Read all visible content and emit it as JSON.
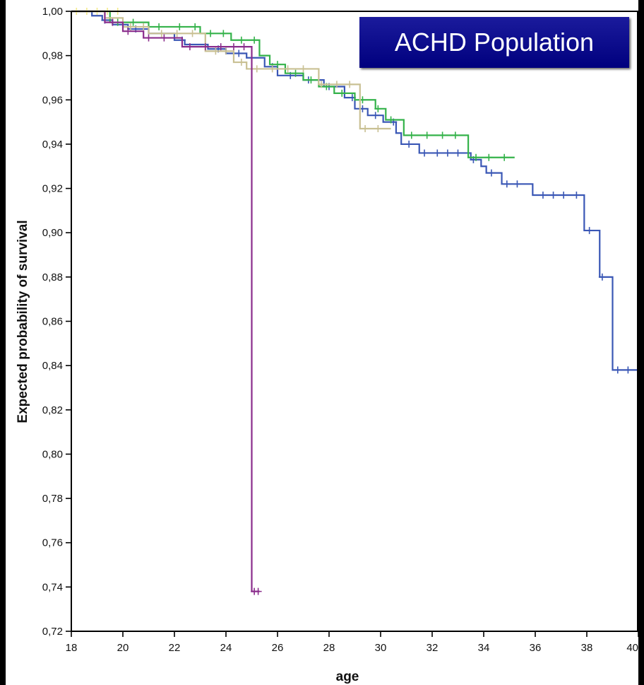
{
  "chart_data": {
    "type": "line",
    "title": "ACHD Population",
    "xlabel": "age",
    "ylabel": "Expected probability of survival",
    "xlim": [
      18,
      40
    ],
    "ylim": [
      0.72,
      1.0
    ],
    "x_ticks": [
      "18",
      "20",
      "22",
      "24",
      "26",
      "28",
      "30",
      "32",
      "34",
      "36",
      "38",
      "40"
    ],
    "y_ticks": [
      "0,72",
      "0,74",
      "0,76",
      "0,78",
      "0,80",
      "0,82",
      "0,84",
      "0,86",
      "0,88",
      "0,90",
      "0,92",
      "0,94",
      "0,96",
      "0,98",
      "1,00"
    ],
    "x_tick_values": [
      18,
      20,
      22,
      24,
      26,
      28,
      30,
      32,
      34,
      36,
      38,
      40
    ],
    "y_tick_values": [
      0.72,
      0.74,
      0.76,
      0.78,
      0.8,
      0.82,
      0.84,
      0.86,
      0.88,
      0.9,
      0.92,
      0.94,
      0.96,
      0.98,
      1.0
    ],
    "grid": false,
    "series": [
      {
        "color": "#3a57b5",
        "steps": [
          [
            18,
            1.0
          ],
          [
            18.8,
            0.998
          ],
          [
            19.2,
            0.996
          ],
          [
            19.6,
            0.994
          ],
          [
            20.2,
            0.992
          ],
          [
            21,
            0.99
          ],
          [
            22,
            0.987
          ],
          [
            22.4,
            0.985
          ],
          [
            23.3,
            0.983
          ],
          [
            24,
            0.981
          ],
          [
            24.8,
            0.979
          ],
          [
            25.5,
            0.975
          ],
          [
            26,
            0.971
          ],
          [
            27,
            0.969
          ],
          [
            27.8,
            0.966
          ],
          [
            28.6,
            0.961
          ],
          [
            29,
            0.956
          ],
          [
            29.5,
            0.953
          ],
          [
            30.1,
            0.95
          ],
          [
            30.6,
            0.945
          ],
          [
            30.8,
            0.94
          ],
          [
            31.5,
            0.936
          ],
          [
            33.5,
            0.933
          ],
          [
            33.9,
            0.93
          ],
          [
            34.1,
            0.927
          ],
          [
            34.7,
            0.922
          ],
          [
            35.9,
            0.917
          ],
          [
            37.9,
            0.901
          ],
          [
            38.5,
            0.88
          ],
          [
            39.0,
            0.838
          ],
          [
            40,
            0.838
          ]
        ],
        "censor_x": [
          19.3,
          20.5,
          22.3,
          23.7,
          24.5,
          25.8,
          26.5,
          27.2,
          28,
          28.9,
          29.3,
          29.8,
          30.5,
          31.1,
          31.7,
          32.2,
          32.6,
          33,
          33.6,
          34.3,
          34.9,
          35.3,
          36.3,
          36.7,
          37.1,
          37.6,
          38.1,
          38.6,
          39.2,
          39.6
        ]
      },
      {
        "color": "#34b24a",
        "steps": [
          [
            18,
            1.0
          ],
          [
            19.5,
            0.995
          ],
          [
            21,
            0.993
          ],
          [
            23,
            0.99
          ],
          [
            24.2,
            0.987
          ],
          [
            25.3,
            0.98
          ],
          [
            25.7,
            0.976
          ],
          [
            26.3,
            0.972
          ],
          [
            27,
            0.969
          ],
          [
            27.6,
            0.966
          ],
          [
            28.2,
            0.963
          ],
          [
            29,
            0.96
          ],
          [
            29.8,
            0.956
          ],
          [
            30.2,
            0.951
          ],
          [
            30.9,
            0.944
          ],
          [
            33.4,
            0.934
          ],
          [
            35.2,
            0.934
          ]
        ],
        "censor_x": [
          19.8,
          20.4,
          21.4,
          22.2,
          22.8,
          23.4,
          23.9,
          24.6,
          25.1,
          26,
          26.7,
          27.3,
          27.9,
          28.5,
          29.3,
          29.9,
          30.4,
          31.2,
          31.8,
          32.4,
          32.9,
          33.7,
          34.2,
          34.8
        ]
      },
      {
        "color": "#c9c093",
        "steps": [
          [
            18,
            1.0
          ],
          [
            19.3,
            0.997
          ],
          [
            20,
            0.993
          ],
          [
            21,
            0.99
          ],
          [
            23.2,
            0.982
          ],
          [
            24.3,
            0.977
          ],
          [
            24.8,
            0.974
          ],
          [
            27.6,
            0.967
          ],
          [
            29.2,
            0.947
          ],
          [
            30.4,
            0.947
          ]
        ],
        "censor_x": [
          20.3,
          20.8,
          21.5,
          22.1,
          22.7,
          23.6,
          24,
          24.6,
          25.2,
          25.8,
          26.4,
          27,
          27.7,
          28.3,
          28.8,
          29.4,
          29.9
        ]
      },
      {
        "color": "#8a2d8c",
        "steps": [
          [
            18,
            1.0
          ],
          [
            19.3,
            0.995
          ],
          [
            20,
            0.991
          ],
          [
            20.8,
            0.988
          ],
          [
            22.3,
            0.984
          ],
          [
            25.0,
            0.984
          ],
          [
            25.0,
            0.738
          ],
          [
            25.3,
            0.738
          ]
        ],
        "censor_x": [
          19.6,
          20.2,
          21,
          21.6,
          22.6,
          23.2,
          23.8,
          24.3,
          24.7,
          25.1,
          25.25
        ]
      },
      {
        "color": "#f2e88a",
        "steps": [
          [
            18,
            1.0
          ],
          [
            20.1,
            1.0
          ]
        ],
        "censor_x": [
          18.2,
          18.6,
          19,
          19.4,
          19.8
        ]
      }
    ]
  }
}
